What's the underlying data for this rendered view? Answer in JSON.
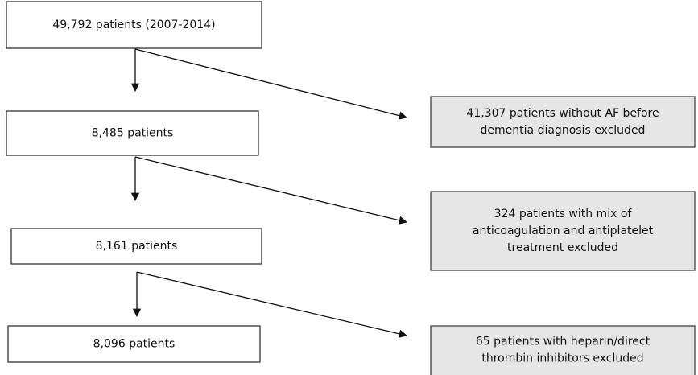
{
  "nodes": [
    {
      "lines": [
        "49,792 patients (2007-2014)"
      ]
    },
    {
      "lines": [
        "8,485 patients"
      ]
    },
    {
      "lines": [
        "8,161 patients"
      ]
    },
    {
      "lines": [
        "8,096 patients"
      ]
    }
  ],
  "exclusions": [
    {
      "lines": [
        "41,307 patients without AF before",
        "dementia diagnosis excluded"
      ]
    },
    {
      "lines": [
        "324 patients with mix of",
        "anticoagulation and antiplatelet",
        "treatment excluded"
      ]
    },
    {
      "lines": [
        "65 patients with heparin/direct",
        "thrombin inhibitors excluded"
      ]
    }
  ]
}
